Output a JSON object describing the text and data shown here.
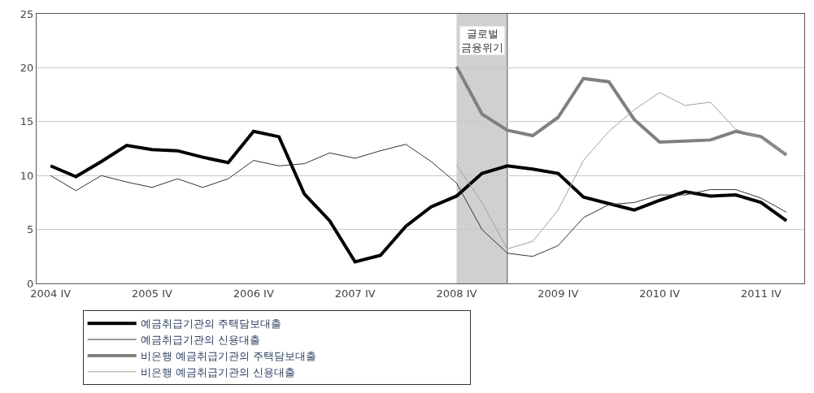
{
  "chart_data": {
    "type": "line",
    "categories": [
      "2004 IV",
      null,
      null,
      null,
      "2005 IV",
      null,
      null,
      null,
      "2006 IV",
      null,
      null,
      null,
      "2007 IV",
      null,
      null,
      null,
      "2008 IV",
      null,
      null,
      null,
      "2009 IV",
      null,
      null,
      null,
      "2010 IV",
      null,
      null,
      null,
      "2011 IV",
      null
    ],
    "series": [
      {
        "name": "예금취급기관의 주택담보대출",
        "color": "#000000",
        "values": [
          10.9,
          9.9,
          11.3,
          12.8,
          12.4,
          12.3,
          11.7,
          11.2,
          14.1,
          13.6,
          8.3,
          5.8,
          2.0,
          2.6,
          5.3,
          7.1,
          8.1,
          10.2,
          10.9,
          10.6,
          10.2,
          8.0,
          7.4,
          6.8,
          7.7,
          8.5,
          8.1,
          8.2,
          7.5,
          5.8
        ]
      },
      {
        "name": "예금취급기관의 신용대출",
        "color": "#333333",
        "values": [
          10.0,
          8.6,
          10.0,
          9.4,
          8.9,
          9.7,
          8.9,
          9.7,
          11.4,
          10.9,
          11.1,
          12.1,
          11.6,
          12.3,
          12.9,
          11.3,
          9.3,
          5.0,
          2.8,
          2.5,
          3.5,
          6.1,
          7.3,
          7.5,
          8.2,
          8.2,
          8.7,
          8.7,
          7.9,
          6.6
        ]
      },
      {
        "name": "비은행 예금취급기관의 주택담보대출",
        "color": "#808080",
        "values": [
          null,
          null,
          null,
          null,
          null,
          null,
          null,
          null,
          null,
          null,
          null,
          null,
          null,
          null,
          null,
          null,
          20.1,
          15.7,
          14.2,
          13.7,
          15.4,
          19.0,
          18.7,
          15.2,
          13.1,
          13.2,
          13.3,
          14.1,
          13.6,
          11.9
        ]
      },
      {
        "name": "비은행 예금취급기관의 신용대출",
        "color": "#a0a0a0",
        "values": [
          null,
          null,
          null,
          null,
          null,
          null,
          null,
          null,
          null,
          null,
          null,
          null,
          null,
          null,
          null,
          null,
          11.0,
          7.5,
          3.2,
          3.9,
          6.8,
          11.4,
          14.1,
          16.1,
          17.7,
          16.5,
          16.8,
          14.3,
          13.5,
          12.0
        ]
      }
    ],
    "ylim": [
      0,
      25
    ],
    "yticks": [
      0,
      5,
      10,
      15,
      20,
      25
    ],
    "grid": "y",
    "legend": "bottom",
    "line_style": "solid",
    "marker": "none",
    "annotations": [
      "글로벌\n금융위기"
    ]
  }
}
